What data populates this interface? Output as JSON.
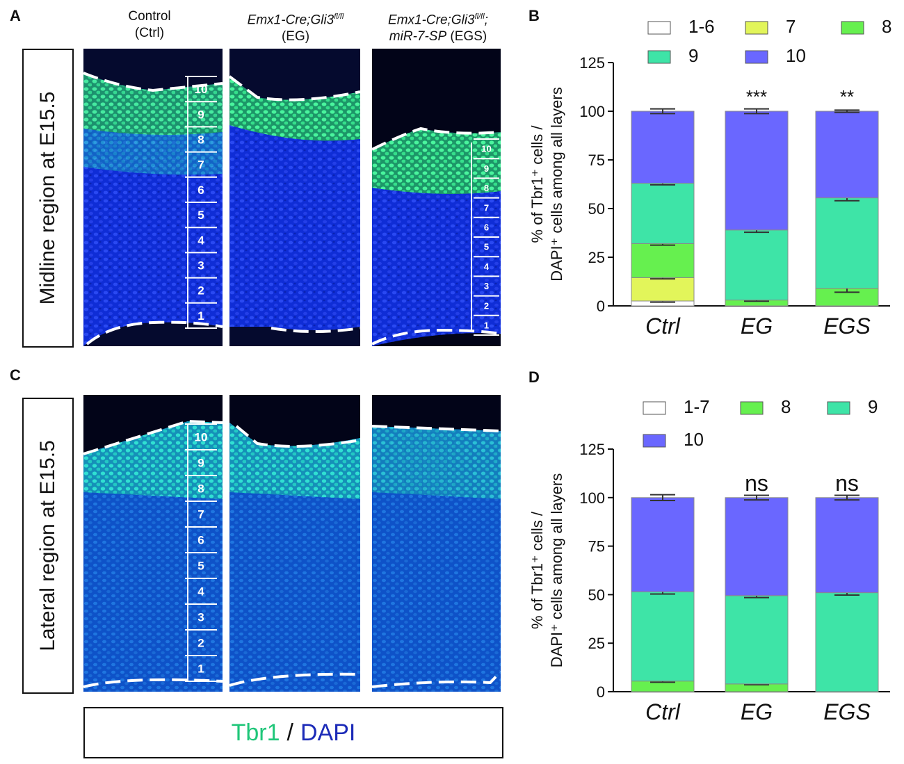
{
  "panels": {
    "A": "A",
    "B": "B",
    "C": "C",
    "D": "D"
  },
  "columns": [
    {
      "line1": "Control",
      "line2": "(Ctrl)"
    },
    {
      "genotype": "Emx1-Cre;Gli3",
      "sup": "fl/fl",
      "abbr": "(EG)"
    },
    {
      "genotype": "Emx1-Cre;Gli3",
      "sup": "fl/fl",
      "suffix": ";",
      "line2_italic": "miR-7-SP",
      "line2_abbr": " (EGS)"
    }
  ],
  "regions": {
    "midline": "Midline region at E15.5",
    "lateral": "Lateral region at E15.5"
  },
  "layer_labels": [
    "10",
    "9",
    "8",
    "7",
    "6",
    "5",
    "4",
    "3",
    "2",
    "1"
  ],
  "stain_legend": {
    "tbr1": "Tbr1",
    "separator": "/",
    "dapi": "DAPI"
  },
  "colors": {
    "layer_1_6": "#ffffff",
    "layer_7": "#e2f55a",
    "layer_8": "#66f04f",
    "layer_9": "#3ee4a7",
    "layer_10": "#6a67ff",
    "tbr1_green": "#1fc679",
    "dapi_blue": "#1c2bb8"
  },
  "chart_data": [
    {
      "panel": "B",
      "type": "bar",
      "stacked": true,
      "categories": [
        "Ctrl",
        "EG",
        "EGS"
      ],
      "ylabel_line1": "% of Tbr1⁺ cells /",
      "ylabel_line2": "DAPI⁺ cells among all layers",
      "ylim": [
        0,
        125
      ],
      "yticks": [
        "0",
        "25",
        "50",
        "75",
        "100",
        "125"
      ],
      "series": [
        {
          "name": "1-6",
          "color": "#ffffff",
          "values": [
            2.5,
            0,
            0
          ],
          "errors": [
            0.6,
            0,
            0
          ]
        },
        {
          "name": "7",
          "color": "#e2f55a",
          "values": [
            12,
            0,
            0
          ],
          "errors": [
            0.6,
            0,
            0
          ]
        },
        {
          "name": "8",
          "color": "#66f04f",
          "values": [
            17.5,
            3,
            9
          ],
          "errors": [
            0.8,
            0.6,
            2
          ]
        },
        {
          "name": "9",
          "color": "#3ee4a7",
          "values": [
            31,
            36,
            46.5
          ],
          "errors": [
            0.8,
            1.2,
            1.5
          ]
        },
        {
          "name": "10",
          "color": "#6a67ff",
          "values": [
            37,
            61,
            44.5
          ],
          "errors": [
            1.2,
            1.2,
            0.6
          ]
        }
      ],
      "significance": [
        "",
        "***",
        "**"
      ]
    },
    {
      "panel": "D",
      "type": "bar",
      "stacked": true,
      "categories": [
        "Ctrl",
        "EG",
        "EGS"
      ],
      "ylabel_line1": "% of Tbr1⁺ cells /",
      "ylabel_line2": "DAPI⁺ cells among all layers",
      "ylim": [
        0,
        125
      ],
      "yticks": [
        "0",
        "25",
        "50",
        "75",
        "100",
        "125"
      ],
      "series": [
        {
          "name": "1-7",
          "color": "#ffffff",
          "values": [
            0,
            0,
            0
          ],
          "errors": [
            0,
            0,
            0
          ]
        },
        {
          "name": "8",
          "color": "#66f04f",
          "values": [
            5.5,
            4,
            0
          ],
          "errors": [
            0.6,
            0.4,
            0
          ]
        },
        {
          "name": "9",
          "color": "#3ee4a7",
          "values": [
            46,
            45.5,
            51
          ],
          "errors": [
            1.2,
            1,
            1.2
          ]
        },
        {
          "name": "10",
          "color": "#6a67ff",
          "values": [
            48.5,
            50.5,
            49
          ],
          "errors": [
            1.5,
            1.2,
            1.2
          ]
        }
      ],
      "significance": [
        "",
        "ns",
        "ns"
      ]
    }
  ]
}
